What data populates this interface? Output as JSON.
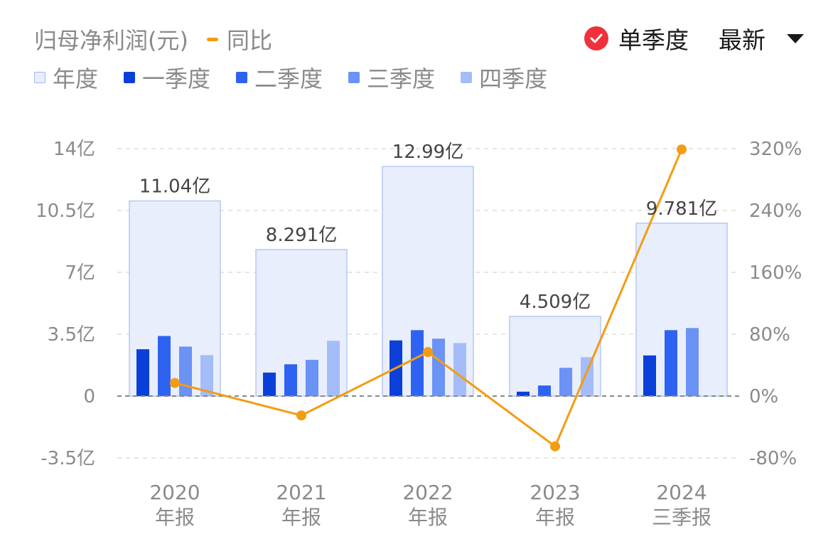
{
  "legend": {
    "title": "归母净利润(元)",
    "yoy_label": "同比",
    "items": [
      {
        "label": "年度",
        "color": "#e8eefc"
      },
      {
        "label": "一季度",
        "color": "#0b3fd9"
      },
      {
        "label": "二季度",
        "color": "#2e63f2"
      },
      {
        "label": "三季度",
        "color": "#6b92f5"
      },
      {
        "label": "四季度",
        "color": "#a4bdf8"
      }
    ]
  },
  "controls": {
    "single_quarter_label": "单季度",
    "sort_label": "最新"
  },
  "colors": {
    "annual_fill": "#e8eefc",
    "annual_stroke": "#b5c9f2",
    "line": "#f39c12",
    "grid": "#dddddd",
    "zero": "#888888"
  },
  "chart_data": {
    "type": "bar",
    "categories": [
      {
        "year": "2020",
        "period": "年报"
      },
      {
        "year": "2021",
        "period": "年报"
      },
      {
        "year": "2022",
        "period": "年报"
      },
      {
        "year": "2023",
        "period": "年报"
      },
      {
        "year": "2024",
        "period": "三季报"
      }
    ],
    "left_axis": {
      "ticks": [
        14,
        10.5,
        7,
        3.5,
        0,
        -3.5
      ],
      "tick_labels": [
        "14亿",
        "10.5亿",
        "7亿",
        "3.5亿",
        "0",
        "-3.5亿"
      ],
      "ylim": [
        -3.5,
        14
      ]
    },
    "right_axis": {
      "ticks": [
        320,
        240,
        160,
        80,
        0,
        -80
      ],
      "tick_labels": [
        "320%",
        "240%",
        "160%",
        "80%",
        "0%",
        "-80%"
      ],
      "ylim": [
        -80,
        320
      ]
    },
    "annual": {
      "values": [
        11.04,
        8.291,
        12.99,
        4.509,
        9.781
      ],
      "labels": [
        "11.04亿",
        "8.291亿",
        "12.99亿",
        "4.509亿",
        "9.781亿"
      ]
    },
    "quarters": [
      {
        "name": "一季度",
        "values": [
          2.65,
          1.33,
          3.15,
          0.25,
          2.3
        ]
      },
      {
        "name": "二季度",
        "values": [
          3.4,
          1.8,
          3.73,
          0.6,
          3.73
        ]
      },
      {
        "name": "三季度",
        "values": [
          2.8,
          2.05,
          3.25,
          1.6,
          3.85
        ]
      },
      {
        "name": "四季度",
        "values": [
          2.32,
          3.13,
          3.0,
          2.2,
          null
        ]
      }
    ],
    "yoy": {
      "name": "同比",
      "values": [
        17,
        -25,
        57,
        -65,
        319
      ]
    }
  }
}
